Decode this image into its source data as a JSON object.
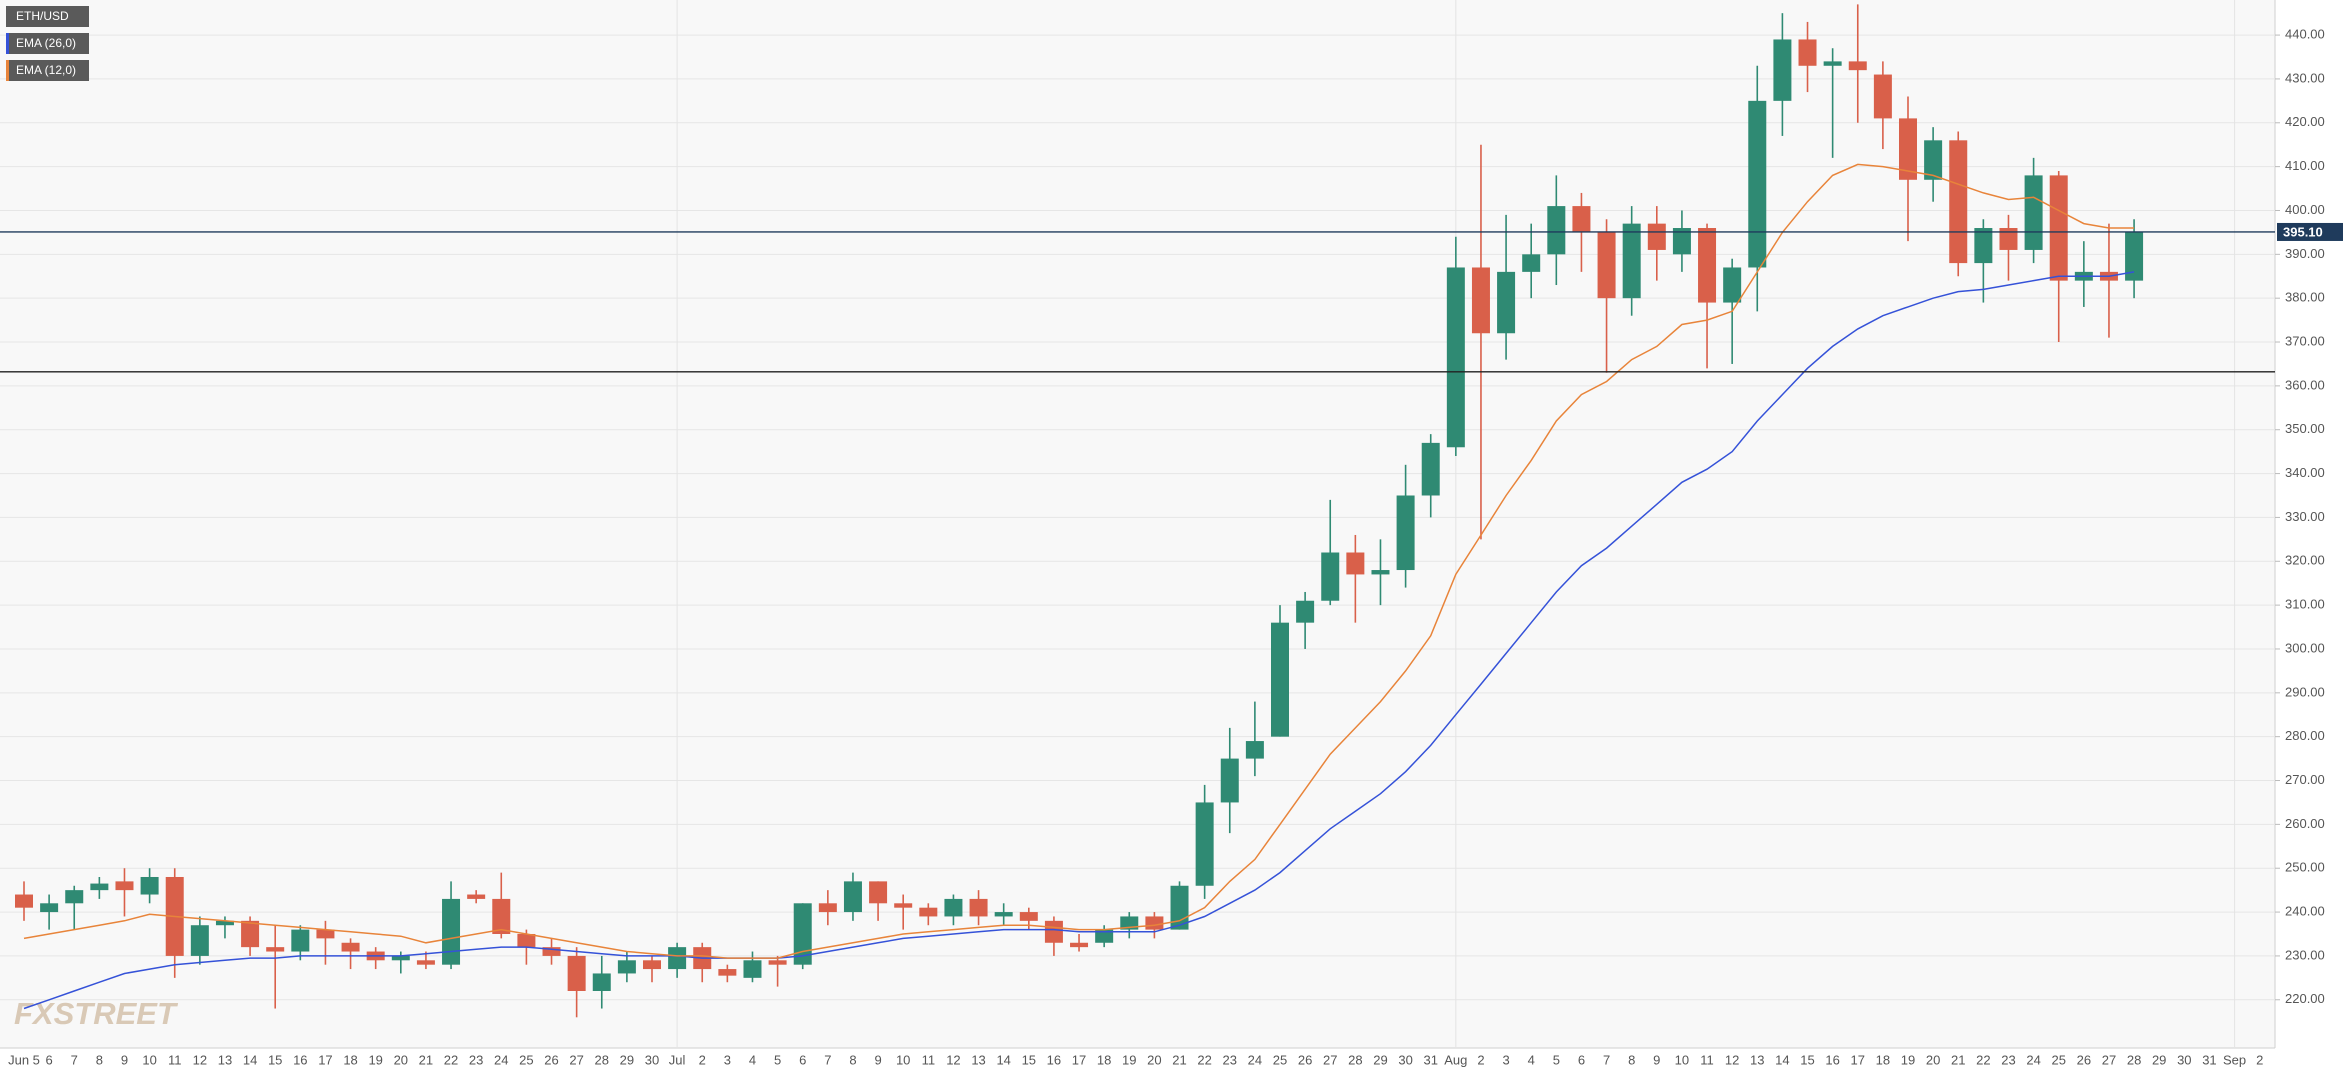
{
  "chart_data": {
    "type": "candlestick",
    "title": "ETH/USD",
    "watermark": "FXSTREET",
    "categories": [
      "Jun 5",
      "6",
      "7",
      "8",
      "9",
      "10",
      "11",
      "12",
      "13",
      "14",
      "15",
      "16",
      "17",
      "18",
      "19",
      "20",
      "21",
      "22",
      "23",
      "24",
      "25",
      "26",
      "27",
      "28",
      "29",
      "30",
      "Jul",
      "2",
      "3",
      "4",
      "5",
      "6",
      "7",
      "8",
      "9",
      "10",
      "11",
      "12",
      "13",
      "14",
      "15",
      "16",
      "17",
      "18",
      "19",
      "20",
      "21",
      "22",
      "23",
      "24",
      "25",
      "26",
      "27",
      "28",
      "29",
      "30",
      "31",
      "Aug",
      "2",
      "3",
      "4",
      "5",
      "6",
      "7",
      "8",
      "9",
      "10",
      "11",
      "12",
      "13",
      "14",
      "15",
      "16",
      "17",
      "18",
      "19",
      "20",
      "21",
      "22",
      "23",
      "24",
      "25",
      "26",
      "27",
      "28",
      "29",
      "30",
      "31",
      "Sep",
      "2"
    ],
    "open": [
      244,
      240,
      242,
      245,
      247,
      244,
      248,
      230,
      237,
      238,
      232,
      231,
      236,
      233,
      231,
      229,
      229,
      228,
      244,
      243,
      235,
      232,
      230,
      222,
      226,
      229,
      227,
      232,
      227,
      225,
      229,
      228,
      242,
      240,
      247,
      242,
      241,
      239,
      243,
      239,
      240,
      238,
      233,
      233,
      236,
      239,
      236,
      246,
      265,
      275,
      280,
      306,
      311,
      322,
      317,
      318,
      335,
      346,
      387,
      372,
      386,
      390,
      401,
      395,
      380,
      397,
      390,
      396,
      379,
      387,
      425,
      439,
      433,
      434,
      431,
      421,
      407,
      416,
      388,
      396,
      391,
      408,
      384,
      386,
      384,
      null,
      null,
      null,
      null,
      null
    ],
    "high": [
      247,
      244,
      246,
      248,
      250,
      250,
      250,
      239,
      239,
      239,
      237,
      237,
      238,
      234,
      232,
      231,
      231,
      247,
      245,
      249,
      236,
      234,
      232,
      230,
      231,
      230,
      233,
      233,
      228,
      231,
      230,
      242,
      245,
      249,
      247,
      244,
      242,
      244,
      245,
      242,
      241,
      239,
      235,
      237,
      240,
      240,
      247,
      269,
      282,
      288,
      310,
      313,
      334,
      326,
      325,
      342,
      349,
      394,
      415,
      399,
      397,
      408,
      404,
      398,
      401,
      401,
      400,
      397,
      389,
      433,
      445,
      443,
      437,
      447,
      434,
      426,
      419,
      418,
      398,
      399,
      412,
      409,
      393,
      397,
      398,
      null,
      null,
      null,
      null,
      null
    ],
    "low": [
      238,
      236,
      236,
      243,
      239,
      242,
      225,
      228,
      234,
      230,
      218,
      229,
      228,
      227,
      227,
      226,
      227,
      227,
      242,
      234,
      228,
      228,
      216,
      218,
      224,
      224,
      225,
      224,
      224,
      224,
      223,
      227,
      237,
      238,
      238,
      236,
      237,
      237,
      237,
      237,
      236,
      230,
      231,
      232,
      234,
      234,
      236,
      243,
      258,
      271,
      280,
      300,
      310,
      306,
      310,
      314,
      330,
      344,
      325,
      366,
      380,
      383,
      386,
      363,
      376,
      384,
      386,
      364,
      365,
      377,
      417,
      427,
      412,
      420,
      414,
      393,
      402,
      385,
      379,
      384,
      388,
      370,
      378,
      371,
      380,
      null,
      null,
      null,
      null,
      null
    ],
    "close": [
      241,
      242,
      245,
      246.5,
      245,
      248,
      230,
      237,
      238,
      232,
      231,
      236,
      234,
      231,
      229,
      230,
      228,
      243,
      243,
      235,
      232,
      230,
      222,
      226,
      229,
      227,
      232,
      227,
      225.5,
      229,
      228,
      242,
      240,
      247,
      242,
      241,
      239,
      243,
      239,
      240,
      238,
      233,
      232,
      236,
      239,
      236,
      246,
      265,
      275,
      279,
      306,
      311,
      322,
      317,
      318,
      335,
      347,
      387,
      372,
      386,
      390,
      401,
      395,
      380,
      397,
      391,
      396,
      379,
      387,
      425,
      439,
      433,
      434,
      432,
      421,
      407,
      416,
      388,
      396,
      391,
      408,
      384,
      386,
      384,
      395.1,
      null,
      null,
      null,
      null,
      null
    ],
    "up_color": "#2f8a73",
    "down_color": "#d9604a",
    "series": [
      {
        "name": "EMA (26,0)",
        "color": "#3552d8",
        "values": [
          218,
          220,
          222,
          224,
          226,
          227,
          228,
          228.5,
          229,
          229.5,
          229.5,
          230,
          230,
          230,
          230,
          230,
          230.5,
          231,
          231.5,
          232,
          232,
          231.5,
          231,
          230.5,
          230,
          230,
          230,
          229.5,
          229.5,
          229.5,
          229.5,
          230,
          231,
          232,
          233,
          234,
          234.5,
          235,
          235.5,
          236,
          236,
          236,
          235.5,
          235.5,
          235.5,
          235.5,
          237,
          239,
          242,
          245,
          249,
          254,
          259,
          263,
          267,
          272,
          278,
          285,
          292,
          299,
          306,
          313,
          319,
          323,
          328,
          333,
          338,
          341,
          345,
          352,
          358,
          364,
          369,
          373,
          376,
          378,
          380,
          381.5,
          382,
          383,
          384,
          385,
          385,
          385,
          386,
          null,
          null,
          null,
          null,
          null
        ]
      },
      {
        "name": "EMA (12,0)",
        "color": "#e8843a",
        "values": [
          234,
          235,
          236,
          237,
          238,
          239.5,
          239,
          238.5,
          238,
          237.5,
          237,
          236.5,
          236,
          235.5,
          235,
          234.5,
          233,
          234,
          235,
          236,
          235,
          234,
          233,
          232,
          231,
          230.5,
          230,
          230,
          229.5,
          229.5,
          229.5,
          231,
          232,
          233,
          234,
          235,
          235.5,
          236,
          236.5,
          237,
          237,
          236.5,
          236,
          236,
          236.5,
          237,
          238,
          241,
          247,
          252,
          260,
          268,
          276,
          282,
          288,
          295,
          303,
          317,
          326,
          335,
          343,
          352,
          358,
          361,
          366,
          369,
          374,
          375,
          377,
          386,
          395,
          402,
          408,
          410.5,
          410,
          409,
          408,
          406,
          404,
          402.5,
          403,
          400,
          397,
          396,
          396,
          null,
          null,
          null,
          null,
          null
        ]
      }
    ],
    "ylim": [
      209,
      448
    ],
    "yticks": [
      {
        "value": 220,
        "label": "220.00"
      },
      {
        "value": 230,
        "label": "230.00"
      },
      {
        "value": 240,
        "label": "240.00"
      },
      {
        "value": 250,
        "label": "250.00"
      },
      {
        "value": 260,
        "label": "260.00"
      },
      {
        "value": 270,
        "label": "270.00"
      },
      {
        "value": 280,
        "label": "280.00"
      },
      {
        "value": 290,
        "label": "290.00"
      },
      {
        "value": 300,
        "label": "300.00"
      },
      {
        "value": 310,
        "label": "310.00"
      },
      {
        "value": 320,
        "label": "320.00"
      },
      {
        "value": 330,
        "label": "330.00"
      },
      {
        "value": 340,
        "label": "340.00"
      },
      {
        "value": 350,
        "label": "350.00"
      },
      {
        "value": 360,
        "label": "360.00"
      },
      {
        "value": 370,
        "label": "370.00"
      },
      {
        "value": 380,
        "label": "380.00"
      },
      {
        "value": 390,
        "label": "390.00"
      },
      {
        "value": 400,
        "label": "400.00"
      },
      {
        "value": 410,
        "label": "410.00"
      },
      {
        "value": 420,
        "label": "420.00"
      },
      {
        "value": 430,
        "label": "430.00"
      },
      {
        "value": 440,
        "label": "440.00"
      }
    ],
    "price_lines": [
      {
        "value": 395.1,
        "label": "395.10",
        "color": "#1f3b5c"
      },
      {
        "value": 363.2,
        "color": "#222222"
      }
    ],
    "grid": true
  }
}
